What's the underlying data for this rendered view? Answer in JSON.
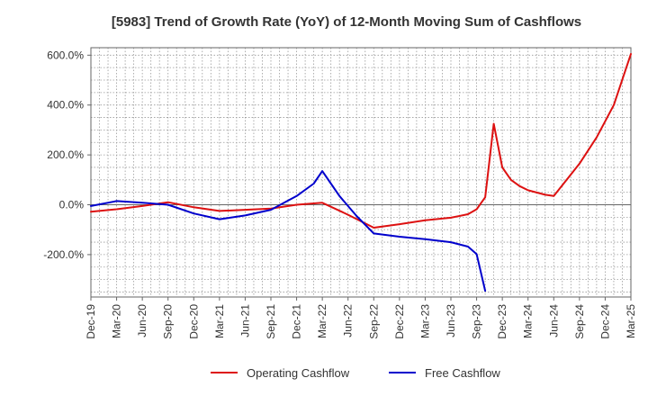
{
  "chart_data": {
    "type": "line",
    "title": "[5983]  Trend of Growth Rate (YoY) of 12-Month Moving Sum of Cashflows",
    "xlabel": "",
    "ylabel": "",
    "ylim": [
      -370,
      630
    ],
    "y_ticks": [
      600,
      400,
      200,
      0,
      -200
    ],
    "y_tick_labels": [
      "600.0%",
      "400.0%",
      "200.0%",
      "0.0%",
      "-200.0%"
    ],
    "x_tick_labels": [
      "Dec-19",
      "Mar-20",
      "Jun-20",
      "Sep-20",
      "Dec-20",
      "Mar-21",
      "Jun-21",
      "Sep-21",
      "Dec-21",
      "Mar-22",
      "Jun-22",
      "Sep-22",
      "Dec-22",
      "Mar-23",
      "Jun-23",
      "Sep-23",
      "Dec-23",
      "Mar-24",
      "Jun-24",
      "Sep-24",
      "Dec-24",
      "Mar-25"
    ],
    "x_start": "Dec-19",
    "x_step_months": 1,
    "grid": true,
    "legend_position": "bottom",
    "series": [
      {
        "name": "Operating Cashflow",
        "color": "#dd1111",
        "points": [
          [
            0,
            -28
          ],
          [
            3,
            -18
          ],
          [
            6,
            -5
          ],
          [
            9,
            10
          ],
          [
            12,
            -10
          ],
          [
            15,
            -25
          ],
          [
            18,
            -20
          ],
          [
            21,
            -15
          ],
          [
            24,
            0
          ],
          [
            27,
            8
          ],
          [
            30,
            -40
          ],
          [
            33,
            -92
          ],
          [
            36,
            -78
          ],
          [
            39,
            -62
          ],
          [
            42,
            -52
          ],
          [
            44,
            -38
          ],
          [
            45,
            -18
          ],
          [
            46,
            30
          ],
          [
            47,
            325
          ],
          [
            48,
            150
          ],
          [
            49,
            100
          ],
          [
            50,
            75
          ],
          [
            51,
            58
          ],
          [
            53,
            40
          ],
          [
            54,
            35
          ],
          [
            57,
            165
          ],
          [
            59,
            270
          ],
          [
            61,
            400
          ],
          [
            63,
            605
          ]
        ]
      },
      {
        "name": "Free Cashflow",
        "color": "#0000cc",
        "points": [
          [
            0,
            -5
          ],
          [
            3,
            15
          ],
          [
            6,
            8
          ],
          [
            9,
            0
          ],
          [
            12,
            -35
          ],
          [
            15,
            -58
          ],
          [
            18,
            -43
          ],
          [
            21,
            -20
          ],
          [
            24,
            35
          ],
          [
            26,
            85
          ],
          [
            27,
            135
          ],
          [
            28,
            85
          ],
          [
            29,
            35
          ],
          [
            31,
            -45
          ],
          [
            33,
            -115
          ],
          [
            36,
            -128
          ],
          [
            39,
            -138
          ],
          [
            42,
            -150
          ],
          [
            44,
            -168
          ],
          [
            45,
            -198
          ],
          [
            46,
            -345
          ]
        ]
      }
    ]
  }
}
